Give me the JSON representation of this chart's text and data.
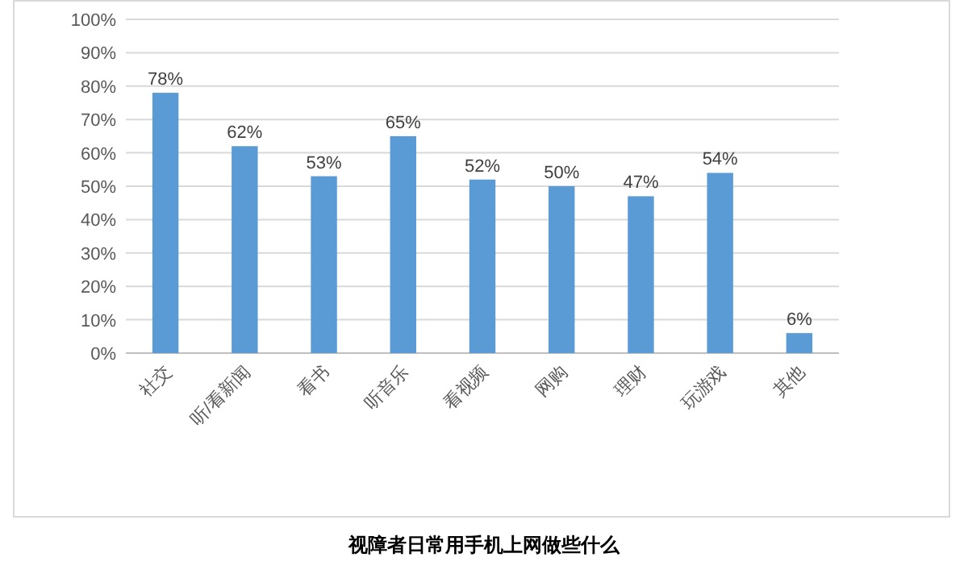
{
  "chart_data": {
    "type": "bar",
    "title": "视障者日常用手机上网做些什么",
    "categories": [
      "社交",
      "听/看新闻",
      "看书",
      "听音乐",
      "看视频",
      "网购",
      "理财",
      "玩游戏",
      "其他"
    ],
    "values": [
      78,
      62,
      53,
      65,
      52,
      50,
      47,
      54,
      6
    ],
    "value_labels": [
      "78%",
      "62%",
      "53%",
      "65%",
      "52%",
      "50%",
      "47%",
      "54%",
      "6%"
    ],
    "color": "#5b9bd5",
    "ylim": [
      0,
      100
    ],
    "yticks": [
      {
        "value": 0,
        "label": "0%"
      },
      {
        "value": 10,
        "label": "10%"
      },
      {
        "value": 20,
        "label": "20%"
      },
      {
        "value": 30,
        "label": "30%"
      },
      {
        "value": 40,
        "label": "40%"
      },
      {
        "value": 50,
        "label": "50%"
      },
      {
        "value": 60,
        "label": "60%"
      },
      {
        "value": 70,
        "label": "70%"
      },
      {
        "value": 80,
        "label": "80%"
      },
      {
        "value": 90,
        "label": "90%"
      },
      {
        "value": 100,
        "label": "100%"
      }
    ],
    "grid": "y"
  }
}
